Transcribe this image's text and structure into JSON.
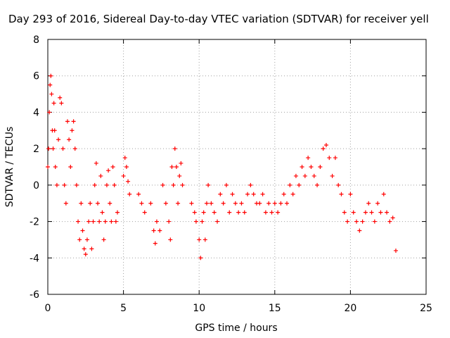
{
  "chart_data": {
    "type": "scatter",
    "title": "Day 293 of 2016, Sidereal Day-to-day VTEC variation (SDTVAR) for receiver yell",
    "xlabel": "GPS time / hours",
    "ylabel": "SDTVAR / TECUs",
    "xlim": [
      0,
      25
    ],
    "ylim": [
      -6,
      8
    ],
    "xticks": [
      0,
      5,
      10,
      15,
      20,
      25
    ],
    "yticks": [
      -6,
      -4,
      -2,
      0,
      2,
      4,
      6,
      8
    ],
    "grid": true,
    "marker": "+",
    "color": "#ff0000",
    "series": [
      {
        "name": "SDTVAR",
        "points": [
          [
            0.0,
            1.0
          ],
          [
            0.05,
            2.0
          ],
          [
            0.1,
            4.0
          ],
          [
            0.15,
            5.5
          ],
          [
            0.2,
            6.0
          ],
          [
            0.25,
            5.0
          ],
          [
            0.3,
            3.0
          ],
          [
            0.35,
            2.0
          ],
          [
            0.4,
            4.5
          ],
          [
            0.45,
            3.0
          ],
          [
            0.5,
            1.0
          ],
          [
            0.6,
            0.0
          ],
          [
            0.7,
            2.5
          ],
          [
            0.8,
            4.8
          ],
          [
            0.9,
            4.5
          ],
          [
            1.0,
            2.0
          ],
          [
            1.1,
            0.0
          ],
          [
            1.2,
            -1.0
          ],
          [
            1.3,
            3.5
          ],
          [
            1.4,
            2.5
          ],
          [
            1.5,
            1.0
          ],
          [
            1.6,
            3.0
          ],
          [
            1.7,
            3.5
          ],
          [
            1.8,
            2.0
          ],
          [
            1.9,
            0.0
          ],
          [
            2.0,
            -2.0
          ],
          [
            2.1,
            -3.0
          ],
          [
            2.2,
            -1.0
          ],
          [
            2.3,
            -2.5
          ],
          [
            2.4,
            -3.5
          ],
          [
            2.5,
            -3.8
          ],
          [
            2.6,
            -3.0
          ],
          [
            2.7,
            -2.0
          ],
          [
            2.8,
            -1.0
          ],
          [
            2.9,
            -3.5
          ],
          [
            3.0,
            -2.0
          ],
          [
            3.1,
            0.0
          ],
          [
            3.2,
            1.2
          ],
          [
            3.3,
            -1.0
          ],
          [
            3.4,
            -2.0
          ],
          [
            3.5,
            0.5
          ],
          [
            3.6,
            -1.5
          ],
          [
            3.7,
            -3.0
          ],
          [
            3.8,
            -2.0
          ],
          [
            3.9,
            0.0
          ],
          [
            4.0,
            0.8
          ],
          [
            4.1,
            -1.0
          ],
          [
            4.2,
            -2.0
          ],
          [
            4.3,
            1.0
          ],
          [
            4.4,
            0.0
          ],
          [
            4.5,
            -2.0
          ],
          [
            4.6,
            -1.5
          ],
          [
            5.0,
            0.5
          ],
          [
            5.1,
            1.5
          ],
          [
            5.2,
            1.0
          ],
          [
            5.3,
            0.2
          ],
          [
            5.4,
            -0.5
          ],
          [
            6.0,
            -0.5
          ],
          [
            6.2,
            -1.0
          ],
          [
            6.4,
            -1.5
          ],
          [
            6.8,
            -1.0
          ],
          [
            7.0,
            -2.5
          ],
          [
            7.1,
            -3.2
          ],
          [
            7.2,
            -2.0
          ],
          [
            7.4,
            -2.5
          ],
          [
            7.6,
            0.0
          ],
          [
            7.8,
            -1.0
          ],
          [
            8.0,
            -2.0
          ],
          [
            8.1,
            -3.0
          ],
          [
            8.2,
            1.0
          ],
          [
            8.3,
            0.0
          ],
          [
            8.4,
            2.0
          ],
          [
            8.5,
            1.0
          ],
          [
            8.6,
            -1.0
          ],
          [
            8.7,
            0.5
          ],
          [
            8.8,
            1.2
          ],
          [
            8.9,
            0.0
          ],
          [
            9.5,
            -1.0
          ],
          [
            9.7,
            -1.5
          ],
          [
            9.8,
            -2.0
          ],
          [
            10.0,
            -3.0
          ],
          [
            10.1,
            -4.0
          ],
          [
            10.2,
            -2.0
          ],
          [
            10.3,
            -1.5
          ],
          [
            10.4,
            -3.0
          ],
          [
            10.5,
            -1.0
          ],
          [
            10.6,
            0.0
          ],
          [
            10.8,
            -1.0
          ],
          [
            11.0,
            -1.5
          ],
          [
            11.2,
            -2.0
          ],
          [
            11.4,
            -0.5
          ],
          [
            11.6,
            -1.0
          ],
          [
            11.8,
            0.0
          ],
          [
            12.0,
            -1.5
          ],
          [
            12.2,
            -0.5
          ],
          [
            12.4,
            -1.0
          ],
          [
            12.6,
            -1.5
          ],
          [
            12.8,
            -1.0
          ],
          [
            13.0,
            -1.5
          ],
          [
            13.2,
            -0.5
          ],
          [
            13.4,
            0.0
          ],
          [
            13.6,
            -0.5
          ],
          [
            13.8,
            -1.0
          ],
          [
            14.0,
            -1.0
          ],
          [
            14.2,
            -0.5
          ],
          [
            14.4,
            -1.5
          ],
          [
            14.6,
            -1.0
          ],
          [
            14.8,
            -1.5
          ],
          [
            15.0,
            -1.0
          ],
          [
            15.2,
            -1.5
          ],
          [
            15.4,
            -1.0
          ],
          [
            15.6,
            -0.5
          ],
          [
            15.8,
            -1.0
          ],
          [
            16.0,
            0.0
          ],
          [
            16.2,
            -0.5
          ],
          [
            16.4,
            0.5
          ],
          [
            16.6,
            0.0
          ],
          [
            16.8,
            1.0
          ],
          [
            17.0,
            0.5
          ],
          [
            17.2,
            1.5
          ],
          [
            17.4,
            1.0
          ],
          [
            17.6,
            0.5
          ],
          [
            17.8,
            0.0
          ],
          [
            18.0,
            1.0
          ],
          [
            18.2,
            2.0
          ],
          [
            18.4,
            2.2
          ],
          [
            18.6,
            1.5
          ],
          [
            18.8,
            0.5
          ],
          [
            19.0,
            1.5
          ],
          [
            19.2,
            0.0
          ],
          [
            19.4,
            -0.5
          ],
          [
            19.6,
            -1.5
          ],
          [
            19.8,
            -2.0
          ],
          [
            20.0,
            -0.5
          ],
          [
            20.2,
            -1.5
          ],
          [
            20.4,
            -2.0
          ],
          [
            20.6,
            -2.5
          ],
          [
            20.8,
            -2.0
          ],
          [
            21.0,
            -1.5
          ],
          [
            21.2,
            -1.0
          ],
          [
            21.4,
            -1.5
          ],
          [
            21.6,
            -2.0
          ],
          [
            21.8,
            -1.0
          ],
          [
            22.0,
            -1.5
          ],
          [
            22.2,
            -0.5
          ],
          [
            22.4,
            -1.5
          ],
          [
            22.6,
            -2.0
          ],
          [
            22.8,
            -1.8
          ],
          [
            23.0,
            -3.6
          ]
        ]
      }
    ]
  }
}
